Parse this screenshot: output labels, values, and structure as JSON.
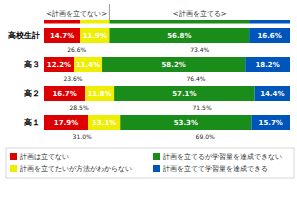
{
  "chart_data": {
    "type": "bar",
    "orientation": "horizontal",
    "stacked": true,
    "data_labels": true,
    "tick_labels": false,
    "grid": false,
    "legend": "bottom",
    "xlim": [
      0,
      100
    ],
    "categories": [
      "高校生計",
      "高３",
      "高２",
      "高１"
    ],
    "series": [
      {
        "name": "計画は立てない",
        "color": "#dd0000",
        "values": [
          14.7,
          12.2,
          16.7,
          17.9
        ],
        "value_labels": [
          "14.7%",
          "12.2%",
          "16.7%",
          "17.9%"
        ]
      },
      {
        "name": "計画を立てたいが方法がわからない",
        "color": "#eeee00",
        "values": [
          11.9,
          11.4,
          11.8,
          13.1
        ],
        "value_labels": [
          "11.9%",
          "11.4%",
          "11.8%",
          "13.1%"
        ]
      },
      {
        "name": "計画を立てるが学習量を達成できない",
        "color": "#1a8c1a",
        "values": [
          56.8,
          58.2,
          57.1,
          53.3
        ],
        "value_labels": [
          "56.8%",
          "58.2%",
          "57.1%",
          "53.3%"
        ]
      },
      {
        "name": "計画を立てて学習量を達成できる",
        "color": "#0055bb",
        "values": [
          16.6,
          18.2,
          14.4,
          15.7
        ],
        "value_labels": [
          "16.6%",
          "18.2%",
          "14.4%",
          "15.7%"
        ]
      }
    ],
    "subtotals": [
      {
        "values": [
          26.6,
          23.6,
          28.5,
          31.0
        ],
        "value_labels": [
          "26.6%",
          "23.6%",
          "28.5%",
          "31.0%"
        ]
      },
      {
        "values": [
          73.4,
          76.4,
          71.5,
          69.0
        ],
        "value_labels": [
          "73.4%",
          "76.4%",
          "71.5%",
          "69.0%"
        ]
      }
    ],
    "annotations": [
      {
        "text": "<計画を立てない>"
      },
      {
        "text": "<計画を立てる>"
      }
    ]
  }
}
